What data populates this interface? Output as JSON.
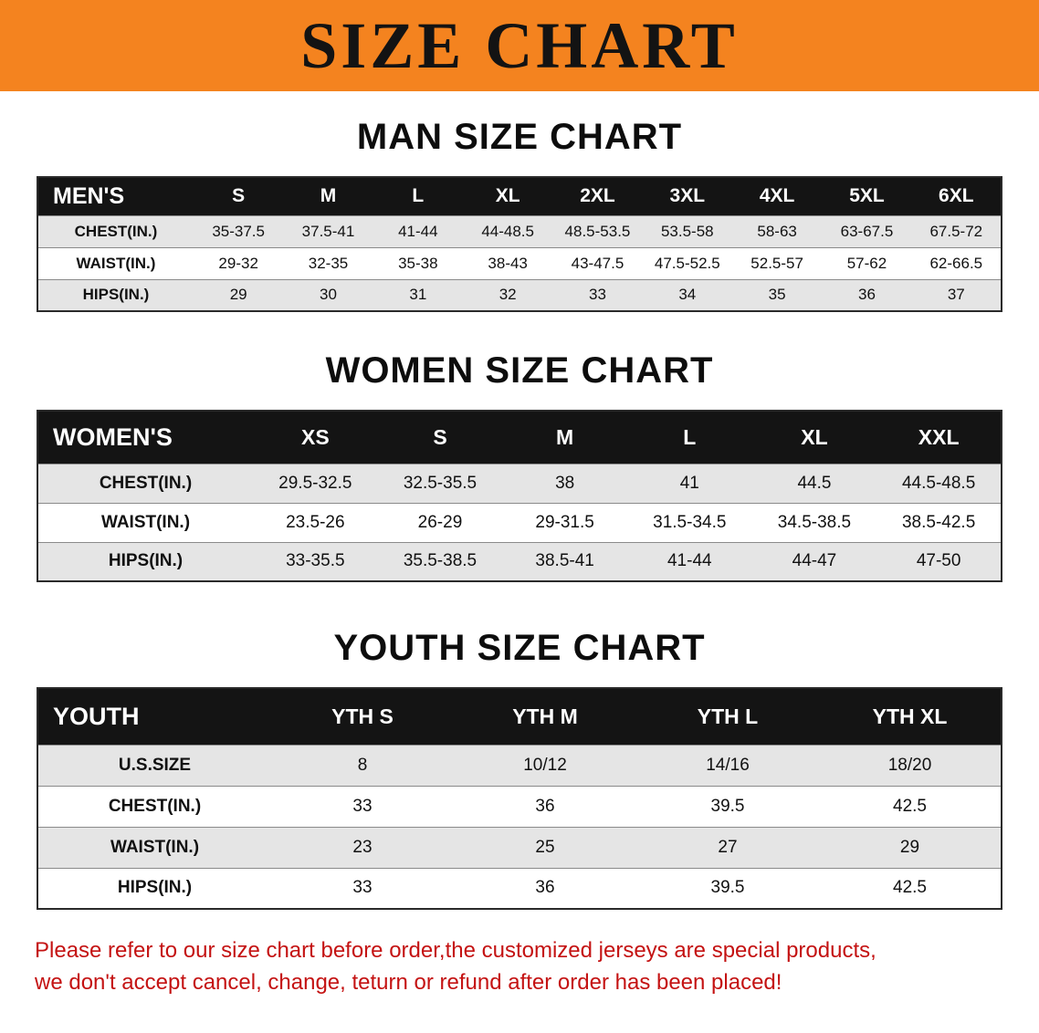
{
  "banner": {
    "title": "SIZE CHART"
  },
  "sections": [
    {
      "id": "men",
      "heading": "MAN SIZE CHART",
      "table": {
        "header": [
          "MEN'S",
          "S",
          "M",
          "L",
          "XL",
          "2XL",
          "3XL",
          "4XL",
          "5XL",
          "6XL"
        ],
        "rows": [
          [
            "CHEST(IN.)",
            "35-37.5",
            "37.5-41",
            "41-44",
            "44-48.5",
            "48.5-53.5",
            "53.5-58",
            "58-63",
            "63-67.5",
            "67.5-72"
          ],
          [
            "WAIST(IN.)",
            "29-32",
            "32-35",
            "35-38",
            "38-43",
            "43-47.5",
            "47.5-52.5",
            "52.5-57",
            "57-62",
            "62-66.5"
          ],
          [
            "HIPS(IN.)",
            "29",
            "30",
            "31",
            "32",
            "33",
            "34",
            "35",
            "36",
            "37"
          ]
        ]
      }
    },
    {
      "id": "women",
      "heading": "WOMEN SIZE CHART",
      "table": {
        "header": [
          "WOMEN'S",
          "XS",
          "S",
          "M",
          "L",
          "XL",
          "XXL"
        ],
        "rows": [
          [
            "CHEST(IN.)",
            "29.5-32.5",
            "32.5-35.5",
            "38",
            "41",
            "44.5",
            "44.5-48.5"
          ],
          [
            "WAIST(IN.)",
            "23.5-26",
            "26-29",
            "29-31.5",
            "31.5-34.5",
            "34.5-38.5",
            "38.5-42.5"
          ],
          [
            "HIPS(IN.)",
            "33-35.5",
            "35.5-38.5",
            "38.5-41",
            "41-44",
            "44-47",
            "47-50"
          ]
        ]
      }
    },
    {
      "id": "youth",
      "heading": "YOUTH SIZE CHART",
      "table": {
        "header": [
          "YOUTH",
          "YTH S",
          "YTH M",
          "YTH L",
          "YTH XL"
        ],
        "rows": [
          [
            "U.S.SIZE",
            "8",
            "10/12",
            "14/16",
            "18/20"
          ],
          [
            "CHEST(IN.)",
            "33",
            "36",
            "39.5",
            "42.5"
          ],
          [
            "WAIST(IN.)",
            "23",
            "25",
            "27",
            "29"
          ],
          [
            "HIPS(IN.)",
            "33",
            "36",
            "39.5",
            "42.5"
          ]
        ]
      }
    }
  ],
  "notice": {
    "line1": "Please refer to our size chart before order,the customized jerseys are special products,",
    "line2": "we don't accept cancel, change, teturn or refund after order has been placed!"
  },
  "colors": {
    "banner_bg": "#f4831f",
    "table_header_bg": "#141414",
    "row_stripe": "#e5e5e5",
    "notice_text": "#c41212"
  }
}
